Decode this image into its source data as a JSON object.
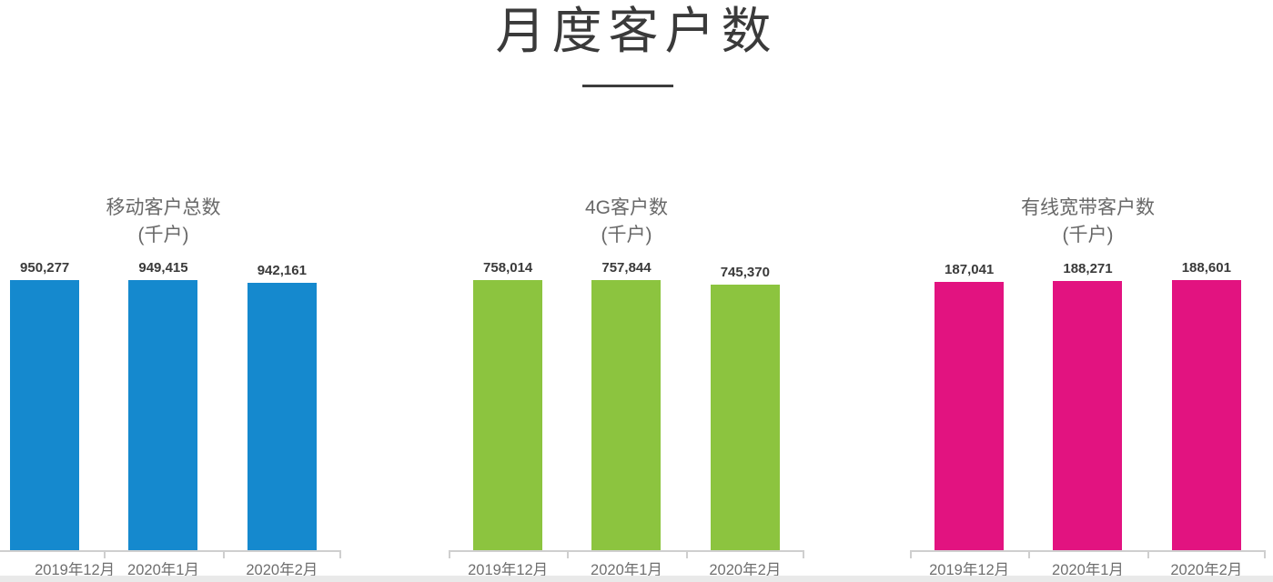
{
  "page": {
    "title": "月度客户数",
    "background": "#ffffff"
  },
  "colors": {
    "axis_line": "#cfcfcf",
    "title_text": "#3a3a3a",
    "chart_title_text": "#686868",
    "axis_label_text": "#6f6f6f",
    "mobile_bar": "#1589CE",
    "fourg_bar": "#8CC43F",
    "broadband_bar": "#E21380"
  },
  "chart_data": [
    {
      "type": "bar",
      "title": "移动客户总数",
      "unit_label": "(千户)",
      "categories": [
        "2019年12月",
        "2020年1月",
        "2020年2月"
      ],
      "values": [
        950277,
        949415,
        942161
      ],
      "value_labels": [
        "950,277",
        "949,415",
        "942,161"
      ],
      "bar_color": "#1589CE",
      "ylim": [
        0,
        950277
      ],
      "value_axis": "hidden",
      "data_labels": "top",
      "grid": "off",
      "legend": "none"
    },
    {
      "type": "bar",
      "title": "4G客户数",
      "unit_label": "(千户)",
      "categories": [
        "2019年12月",
        "2020年1月",
        "2020年2月"
      ],
      "values": [
        758014,
        757844,
        745370
      ],
      "value_labels": [
        "758,014",
        "757,844",
        "745,370"
      ],
      "bar_color": "#8CC43F",
      "ylim": [
        0,
        758014
      ],
      "value_axis": "hidden",
      "data_labels": "top",
      "grid": "off",
      "legend": "none"
    },
    {
      "type": "bar",
      "title": "有线宽带客户数",
      "unit_label": "(千户)",
      "categories": [
        "2019年12月",
        "2020年1月",
        "2020年2月"
      ],
      "values": [
        187041,
        188271,
        188601
      ],
      "value_labels": [
        "187,041",
        "188,271",
        "188,601"
      ],
      "bar_color": "#E21380",
      "ylim": [
        0,
        188601
      ],
      "value_axis": "hidden",
      "data_labels": "top",
      "grid": "off",
      "legend": "none"
    }
  ]
}
